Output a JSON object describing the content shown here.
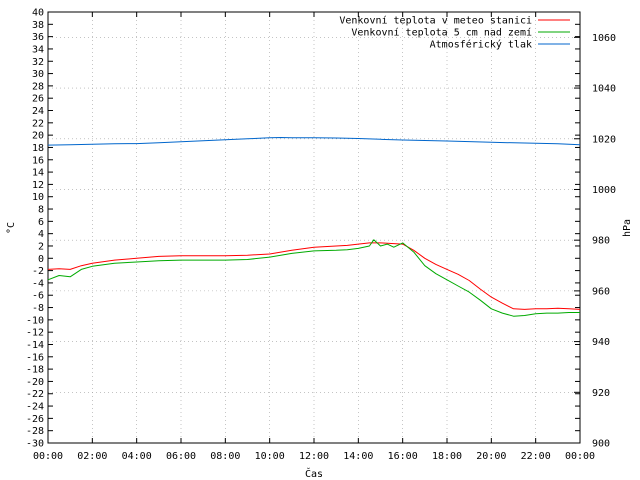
{
  "chart_data": {
    "type": "line",
    "title": "",
    "xlabel": "Čas",
    "ylabel": "°C",
    "y2label": "hPa",
    "xlim": [
      0,
      24
    ],
    "ylim": [
      -30,
      40
    ],
    "y2lim": [
      900,
      1070
    ],
    "x_ticks": [
      "00:00",
      "02:00",
      "04:00",
      "06:00",
      "08:00",
      "10:00",
      "12:00",
      "14:00",
      "16:00",
      "18:00",
      "20:00",
      "22:00",
      "00:00"
    ],
    "y_ticks": [
      40,
      38,
      36,
      34,
      32,
      30,
      28,
      26,
      24,
      22,
      20,
      18,
      16,
      14,
      12,
      10,
      8,
      6,
      4,
      2,
      0,
      -2,
      -4,
      -6,
      -8,
      -10,
      -12,
      -14,
      -16,
      -18,
      -20,
      -22,
      -24,
      -26,
      -28,
      -30
    ],
    "y2_ticks": [
      1060,
      1040,
      1020,
      1000,
      980,
      960,
      940,
      920,
      900
    ],
    "grid": true,
    "legend_position": "top-right",
    "series": [
      {
        "name": "Venkovní teplota v meteo stanici",
        "color": "#ff0000",
        "axis": "left",
        "x": [
          0,
          0.5,
          1,
          1.5,
          2,
          3,
          4,
          5,
          6,
          7,
          8,
          9,
          10,
          11,
          12,
          13,
          13.5,
          14,
          14.5,
          15,
          15.5,
          16,
          16.5,
          17,
          17.5,
          18,
          18.5,
          19,
          19.5,
          20,
          20.5,
          21,
          21.5,
          22,
          22.5,
          23,
          23.5,
          24
        ],
        "values": [
          -1.8,
          -1.7,
          -1.8,
          -1.2,
          -0.8,
          -0.3,
          0,
          0.3,
          0.4,
          0.4,
          0.4,
          0.5,
          0.7,
          1.3,
          1.8,
          2.0,
          2.1,
          2.3,
          2.5,
          2.5,
          2.4,
          2.3,
          1.3,
          0,
          -1,
          -1.8,
          -2.6,
          -3.6,
          -5.0,
          -6.3,
          -7.3,
          -8.2,
          -8.3,
          -8.2,
          -8.2,
          -8.1,
          -8.2,
          -8.3
        ]
      },
      {
        "name": "Venkovní teplota 5 cm nad zemí",
        "color": "#00aa00",
        "axis": "left",
        "x": [
          0,
          0.5,
          1,
          1.5,
          2,
          3,
          4,
          5,
          6,
          7,
          8,
          9,
          10,
          11,
          12,
          13,
          13.5,
          14,
          14.5,
          14.7,
          15,
          15.3,
          15.6,
          16,
          16.5,
          17,
          17.5,
          18,
          18.5,
          19,
          19.5,
          20,
          20.5,
          21,
          21.5,
          22,
          22.5,
          23,
          23.5,
          24
        ],
        "values": [
          -3.5,
          -2.8,
          -3.0,
          -1.8,
          -1.3,
          -0.8,
          -0.6,
          -0.4,
          -0.3,
          -0.3,
          -0.3,
          -0.2,
          0.2,
          0.8,
          1.2,
          1.3,
          1.4,
          1.6,
          2.0,
          3.0,
          2.0,
          2.3,
          1.8,
          2.5,
          1.0,
          -1.2,
          -2.5,
          -3.5,
          -4.5,
          -5.5,
          -6.8,
          -8.2,
          -8.9,
          -9.4,
          -9.3,
          -9.0,
          -8.9,
          -8.9,
          -8.8,
          -8.8
        ]
      },
      {
        "name": "Atmosférický tlak",
        "color": "#0066cc",
        "axis": "right",
        "x": [
          0,
          1,
          2,
          3,
          4,
          5,
          6,
          7,
          8,
          9,
          10,
          10.5,
          11,
          12,
          13,
          14,
          15,
          16,
          17,
          18,
          19,
          20,
          21,
          22,
          23,
          24
        ],
        "values": [
          1017.5,
          1017.6,
          1017.8,
          1018.0,
          1018.1,
          1018.4,
          1018.8,
          1019.2,
          1019.6,
          1020.0,
          1020.4,
          1020.5,
          1020.4,
          1020.4,
          1020.3,
          1020.1,
          1019.8,
          1019.5,
          1019.3,
          1019.1,
          1018.9,
          1018.6,
          1018.4,
          1018.2,
          1018.0,
          1017.6
        ]
      }
    ]
  }
}
